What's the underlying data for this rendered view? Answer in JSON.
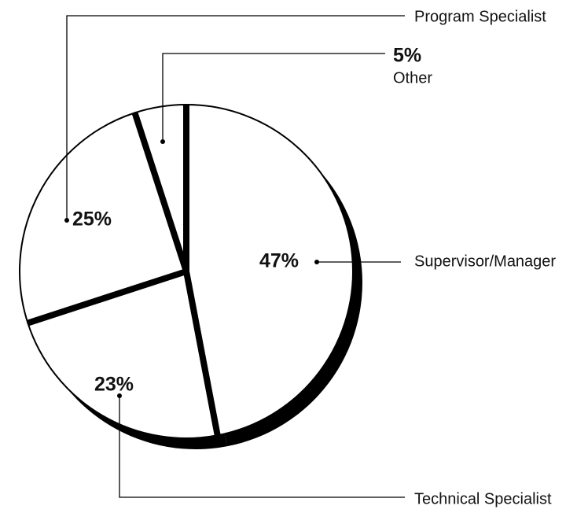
{
  "chart_data": {
    "type": "pie",
    "categories": [
      "Supervisor/Manager",
      "Technical Specialist",
      "Program Specialist",
      "Other"
    ],
    "values": [
      47,
      23,
      25,
      5
    ],
    "value_labels": [
      "47%",
      "23%",
      "25%",
      "5%"
    ],
    "color": "#ffffff"
  }
}
